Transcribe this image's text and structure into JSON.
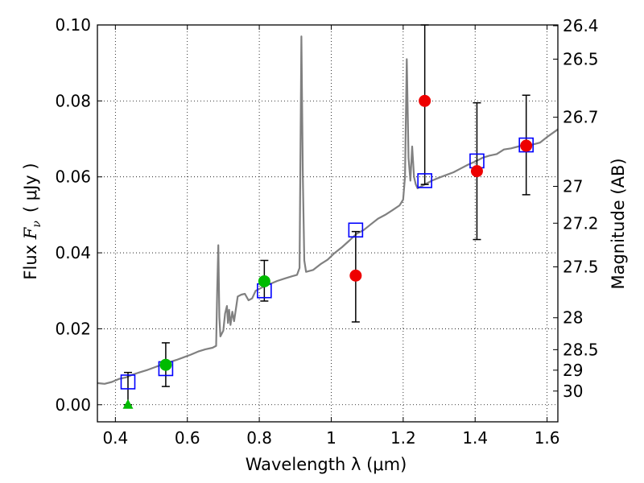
{
  "chart_data": {
    "type": "scatter",
    "xlabel": "Wavelength  λ (μm)",
    "ylabel_prefix": "Flux ",
    "ylabel_var": "F",
    "ylabel_sub": "ν",
    "ylabel_unit": "( μJy )",
    "ylabel_right": "Magnitude (AB)",
    "xlim": [
      0.35,
      1.63
    ],
    "ylim": [
      -0.0045,
      0.1
    ],
    "grid": true,
    "x_ticks": [
      0.4,
      0.6,
      0.8,
      1.0,
      1.2,
      1.4,
      1.6
    ],
    "x_tick_labels": [
      "0.4",
      "0.6",
      "0.8",
      "1",
      "1.2",
      "1.4",
      "1.6"
    ],
    "y_ticks": [
      0.0,
      0.02,
      0.04,
      0.06,
      0.08,
      0.1
    ],
    "y_tick_labels": [
      "0.00",
      "0.02",
      "0.04",
      "0.06",
      "0.08",
      "0.10"
    ],
    "mag_ticks": [
      {
        "label": "26.4",
        "flux": 0.0998
      },
      {
        "label": "26.5",
        "flux": 0.091
      },
      {
        "label": "26.7",
        "flux": 0.0757
      },
      {
        "label": "27",
        "flux": 0.0575
      },
      {
        "label": "27.2",
        "flux": 0.0478
      },
      {
        "label": "27.5",
        "flux": 0.0363
      },
      {
        "label": "28",
        "flux": 0.0229
      },
      {
        "label": "28.5",
        "flux": 0.0145
      },
      {
        "label": "29",
        "flux": 0.0091
      },
      {
        "label": "30",
        "flux": 0.0036
      }
    ],
    "colors": {
      "template": "#808080",
      "model_box": "#0000ff",
      "hst_points": "#00bb00",
      "nir_points": "#ee0000",
      "errorbar": "#000000"
    },
    "template_spectrum": [
      [
        0.35,
        0.0057
      ],
      [
        0.37,
        0.0055
      ],
      [
        0.39,
        0.006
      ],
      [
        0.41,
        0.0068
      ],
      [
        0.43,
        0.0072
      ],
      [
        0.45,
        0.008
      ],
      [
        0.47,
        0.0086
      ],
      [
        0.49,
        0.0092
      ],
      [
        0.51,
        0.0099
      ],
      [
        0.53,
        0.0106
      ],
      [
        0.55,
        0.0112
      ],
      [
        0.57,
        0.0118
      ],
      [
        0.59,
        0.0125
      ],
      [
        0.61,
        0.0132
      ],
      [
        0.63,
        0.014
      ],
      [
        0.65,
        0.0146
      ],
      [
        0.67,
        0.015
      ],
      [
        0.68,
        0.0155
      ],
      [
        0.683,
        0.03
      ],
      [
        0.686,
        0.042
      ],
      [
        0.689,
        0.023
      ],
      [
        0.692,
        0.018
      ],
      [
        0.7,
        0.0195
      ],
      [
        0.705,
        0.024
      ],
      [
        0.71,
        0.026
      ],
      [
        0.713,
        0.0215
      ],
      [
        0.716,
        0.025
      ],
      [
        0.72,
        0.021
      ],
      [
        0.725,
        0.0245
      ],
      [
        0.73,
        0.022
      ],
      [
        0.74,
        0.0285
      ],
      [
        0.75,
        0.029
      ],
      [
        0.76,
        0.0292
      ],
      [
        0.77,
        0.0275
      ],
      [
        0.78,
        0.028
      ],
      [
        0.79,
        0.03
      ],
      [
        0.81,
        0.031
      ],
      [
        0.83,
        0.0318
      ],
      [
        0.85,
        0.0326
      ],
      [
        0.87,
        0.0332
      ],
      [
        0.89,
        0.0338
      ],
      [
        0.905,
        0.0342
      ],
      [
        0.912,
        0.036
      ],
      [
        0.917,
        0.097
      ],
      [
        0.921,
        0.06
      ],
      [
        0.925,
        0.038
      ],
      [
        0.93,
        0.035
      ],
      [
        0.95,
        0.0355
      ],
      [
        0.97,
        0.037
      ],
      [
        0.99,
        0.0382
      ],
      [
        1.01,
        0.04
      ],
      [
        1.03,
        0.0415
      ],
      [
        1.05,
        0.0432
      ],
      [
        1.07,
        0.045
      ],
      [
        1.09,
        0.046
      ],
      [
        1.11,
        0.0475
      ],
      [
        1.13,
        0.049
      ],
      [
        1.15,
        0.05
      ],
      [
        1.17,
        0.0512
      ],
      [
        1.19,
        0.0525
      ],
      [
        1.2,
        0.054
      ],
      [
        1.205,
        0.06
      ],
      [
        1.21,
        0.091
      ],
      [
        1.215,
        0.065
      ],
      [
        1.22,
        0.059
      ],
      [
        1.225,
        0.068
      ],
      [
        1.23,
        0.06
      ],
      [
        1.235,
        0.058
      ],
      [
        1.24,
        0.057
      ],
      [
        1.26,
        0.058
      ],
      [
        1.28,
        0.059
      ],
      [
        1.3,
        0.0598
      ],
      [
        1.32,
        0.0605
      ],
      [
        1.34,
        0.0612
      ],
      [
        1.36,
        0.0622
      ],
      [
        1.38,
        0.0632
      ],
      [
        1.4,
        0.064
      ],
      [
        1.42,
        0.065
      ],
      [
        1.44,
        0.0656
      ],
      [
        1.46,
        0.066
      ],
      [
        1.48,
        0.0672
      ],
      [
        1.5,
        0.0675
      ],
      [
        1.52,
        0.068
      ],
      [
        1.54,
        0.0687
      ],
      [
        1.56,
        0.0685
      ],
      [
        1.58,
        0.069
      ],
      [
        1.6,
        0.0705
      ],
      [
        1.63,
        0.0725
      ]
    ],
    "model_boxes": [
      {
        "x": 0.435,
        "y": 0.006
      },
      {
        "x": 0.54,
        "y": 0.0095
      },
      {
        "x": 0.814,
        "y": 0.03
      },
      {
        "x": 1.068,
        "y": 0.046
      },
      {
        "x": 1.26,
        "y": 0.059
      },
      {
        "x": 1.405,
        "y": 0.0642
      },
      {
        "x": 1.542,
        "y": 0.0684
      }
    ],
    "observed": [
      {
        "x": 0.435,
        "y": 0.0,
        "yerr_low": 0.0,
        "yerr_high": 0.0085,
        "marker": "triangle",
        "color": "green"
      },
      {
        "x": 0.54,
        "y": 0.0105,
        "yerr_low": 0.0048,
        "yerr_high": 0.0163,
        "marker": "circle",
        "color": "green"
      },
      {
        "x": 0.814,
        "y": 0.0325,
        "yerr_low": 0.0273,
        "yerr_high": 0.038,
        "marker": "circle",
        "color": "green"
      },
      {
        "x": 1.068,
        "y": 0.034,
        "yerr_low": 0.0218,
        "yerr_high": 0.0456,
        "marker": "circle",
        "color": "red"
      },
      {
        "x": 1.26,
        "y": 0.08,
        "yerr_low": 0.058,
        "yerr_high": 0.1,
        "marker": "circle",
        "color": "red"
      },
      {
        "x": 1.405,
        "y": 0.0615,
        "yerr_low": 0.0435,
        "yerr_high": 0.0795,
        "marker": "circle",
        "color": "red"
      },
      {
        "x": 1.542,
        "y": 0.0682,
        "yerr_low": 0.0553,
        "yerr_high": 0.0815,
        "marker": "circle",
        "color": "red"
      }
    ]
  }
}
